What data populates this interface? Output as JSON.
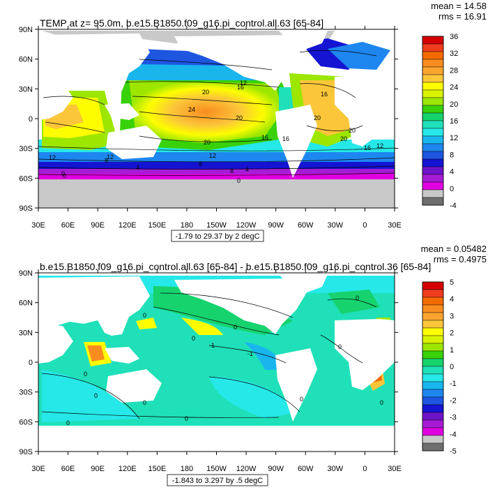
{
  "panels": [
    {
      "title": "TEMP at z=  95.0m, b.e15.B1850.f09_g16.pi_control.all.63 [65-84]",
      "stats": {
        "mean": "mean = 14.58",
        "rms": "rms = 16.91"
      },
      "range_caption": "-1.79 to 29.37 by 2 degC",
      "lat_labels": [
        "90N",
        "60N",
        "30N",
        "0",
        "30S",
        "60S",
        "90S"
      ],
      "lon_labels": [
        "30E",
        "60E",
        "90E",
        "120E",
        "150E",
        "180",
        "150W",
        "120W",
        "90W",
        "60W",
        "30W",
        "0",
        "30E"
      ],
      "colorbar": {
        "labels": [
          "36",
          "32",
          "28",
          "24",
          "20",
          "16",
          "12",
          "8",
          "4",
          "0",
          "-4"
        ],
        "colors": [
          "#d40000",
          "#f03c1e",
          "#f56a00",
          "#f98c1f",
          "#faa530",
          "#fbc63a",
          "#fdfd00",
          "#d8f200",
          "#9ce600",
          "#38d10a",
          "#16d36e",
          "#1fe0b8",
          "#26e8e8",
          "#19b6ee",
          "#1e86ef",
          "#1e56e0",
          "#1414d2",
          "#6d14c8",
          "#a61cd6",
          "#e000e0",
          "#c8c8c8",
          "#6e6e6e"
        ]
      },
      "contour_labels": [
        "20",
        "24",
        "20",
        "16",
        "12",
        "8",
        "4",
        "0",
        "16",
        "20",
        "16",
        "12",
        "12",
        "8",
        "4",
        "0",
        "20",
        "16",
        "12",
        "20",
        "16",
        "20",
        "12",
        "8",
        "0"
      ]
    },
    {
      "title": "b.e15.B1850.f09_g16.pi_control.all.63 [65-84] - b.e15.B1850.f09_g16.pi_control.36 [65-84]",
      "stats": {
        "mean": "mean = 0.05482",
        "rms": "rms = 0.4975"
      },
      "range_caption": "-1.843 to 3.297 by .5 degC",
      "lat_labels": [
        "90N",
        "60N",
        "30N",
        "0",
        "30S",
        "60S",
        "90S"
      ],
      "lon_labels": [
        "30E",
        "60E",
        "90E",
        "120E",
        "150E",
        "180",
        "150W",
        "120W",
        "90W",
        "60W",
        "30W",
        "0",
        "30E"
      ],
      "colorbar": {
        "labels": [
          "5",
          "4",
          "3",
          "2",
          "1",
          "0",
          "-1",
          "-2",
          "-3",
          "-4",
          "-5"
        ],
        "colors": [
          "#d40000",
          "#f03c1e",
          "#f56a00",
          "#f98c1f",
          "#faa530",
          "#fbc63a",
          "#fdfd00",
          "#d8f200",
          "#9ce600",
          "#38d10a",
          "#16d36e",
          "#1fe0b8",
          "#26e8e8",
          "#19b6ee",
          "#1e86ef",
          "#1e56e0",
          "#1414d2",
          "#6d14c8",
          "#a61cd6",
          "#e000e0",
          "#c8c8c8",
          "#6e6e6e"
        ]
      },
      "contour_labels": [
        "0",
        "0",
        "-1",
        "0",
        "0",
        "0",
        "0",
        "0",
        "-1",
        "0",
        "0",
        "0",
        "0",
        "0"
      ]
    }
  ]
}
